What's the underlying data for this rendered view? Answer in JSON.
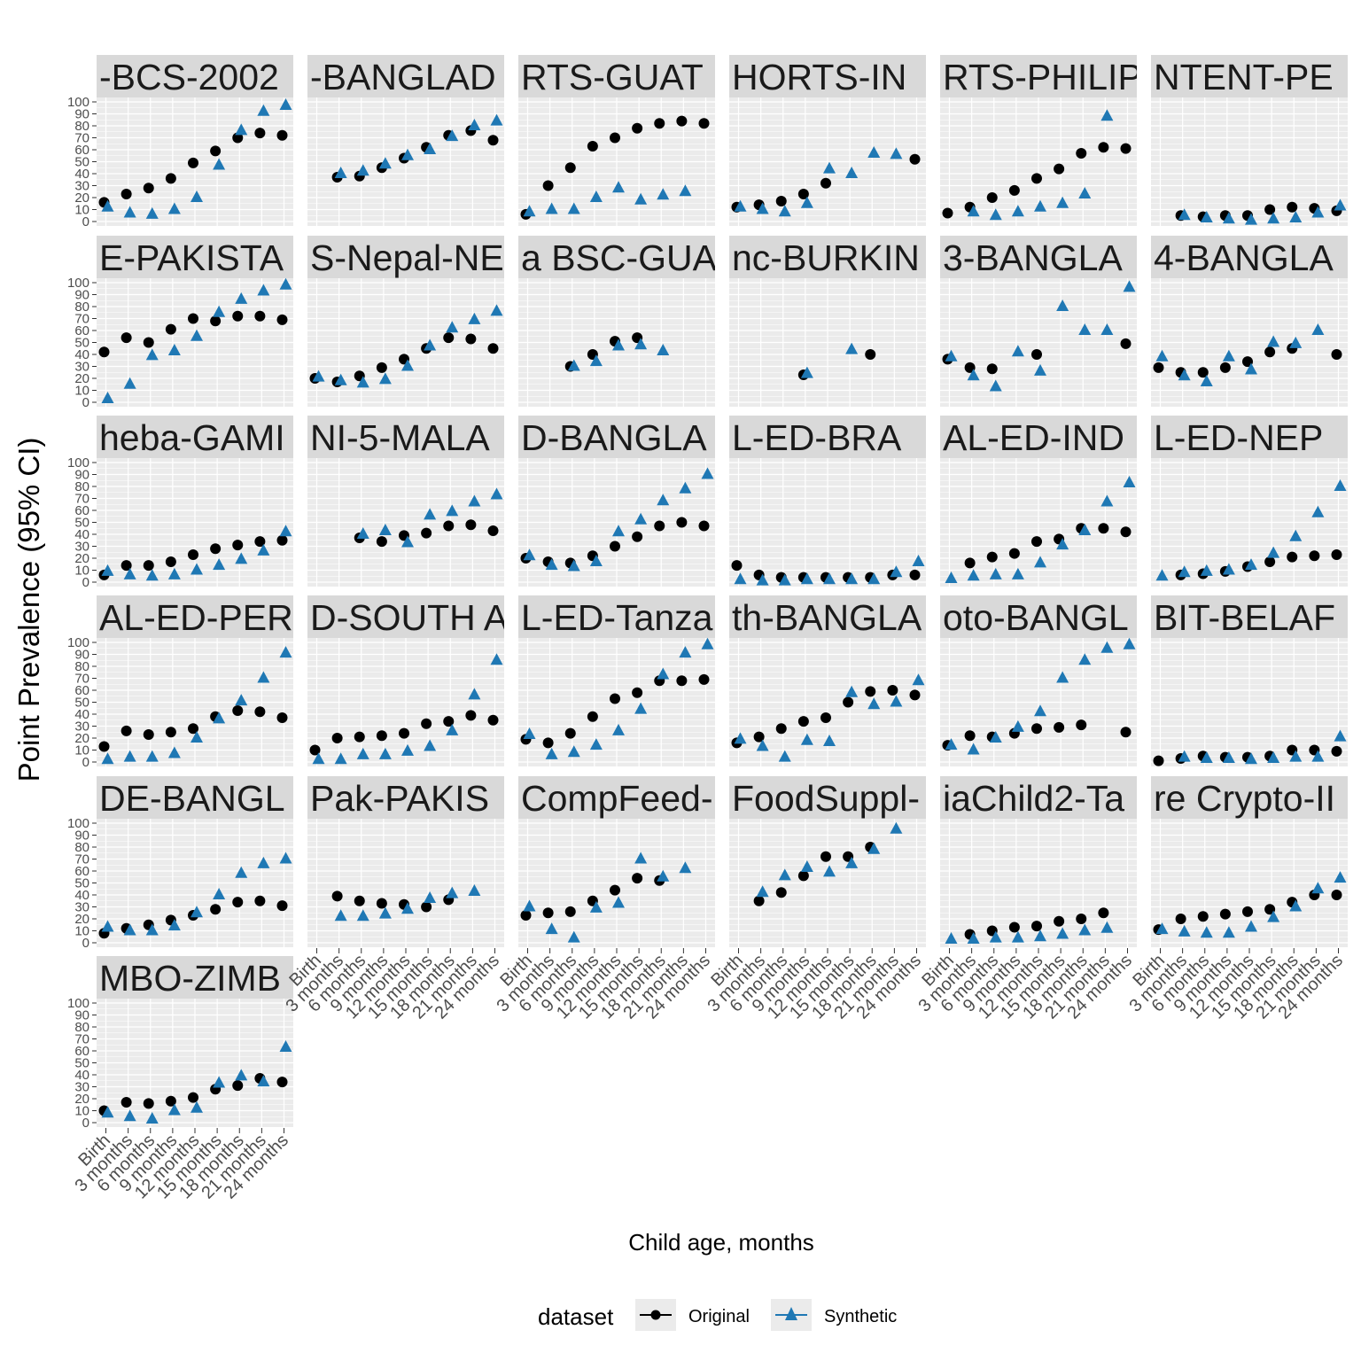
{
  "chart_data": {
    "type": "scatter",
    "layout": "faceted small multiples, 6 columns",
    "xlabel": "Child age, months",
    "ylabel": "Point Prevalence (95% CI)",
    "ylim": [
      0,
      100
    ],
    "y_ticks": [
      0,
      10,
      20,
      30,
      40,
      50,
      60,
      70,
      80,
      90,
      100
    ],
    "categories": [
      "Birth",
      "3 months",
      "6 months",
      "9 months",
      "12 months",
      "15 months",
      "18 months",
      "21 months",
      "24 months"
    ],
    "legend": {
      "title": "dataset",
      "position": "bottom",
      "entries": [
        {
          "label": "Original",
          "color": "#000000",
          "marker": "circle"
        },
        {
          "label": "Synthetic",
          "color": "#1f78b4",
          "marker": "triangle"
        }
      ]
    },
    "panels": [
      {
        "title": "-BCS-2002",
        "series": [
          {
            "name": "Original",
            "values": [
              16,
              23,
              28,
              36,
              49,
              59,
              70,
              74,
              72
            ]
          },
          {
            "name": "Synthetic",
            "values": [
              12,
              7,
              6,
              10,
              20,
              47,
              76,
              92,
              97
            ]
          }
        ]
      },
      {
        "title": "-BANGLAD",
        "series": [
          {
            "name": "Original",
            "values": [
              null,
              37,
              38,
              45,
              53,
              62,
              72,
              76,
              68
            ]
          },
          {
            "name": "Synthetic",
            "values": [
              null,
              40,
              42,
              48,
              55,
              60,
              71,
              80,
              84
            ]
          }
        ]
      },
      {
        "title": "RTS-GUAT",
        "series": [
          {
            "name": "Original",
            "values": [
              6,
              30,
              45,
              63,
              70,
              78,
              82,
              84,
              82
            ]
          },
          {
            "name": "Synthetic",
            "values": [
              8,
              10,
              10,
              20,
              28,
              18,
              22,
              25,
              null
            ]
          }
        ]
      },
      {
        "title": "HORTS-IN",
        "series": [
          {
            "name": "Original",
            "values": [
              12,
              14,
              17,
              23,
              32,
              null,
              null,
              null,
              52
            ]
          },
          {
            "name": "Synthetic",
            "values": [
              12,
              10,
              8,
              15,
              44,
              40,
              57,
              56,
              null
            ]
          }
        ]
      },
      {
        "title": "RTS-PHILIP",
        "series": [
          {
            "name": "Original",
            "values": [
              7,
              12,
              20,
              26,
              36,
              44,
              57,
              62,
              61
            ]
          },
          {
            "name": "Synthetic",
            "values": [
              null,
              8,
              5,
              8,
              12,
              15,
              23,
              88,
              null
            ]
          }
        ]
      },
      {
        "title": "NTENT-PE",
        "series": [
          {
            "name": "Original",
            "values": [
              null,
              5,
              4,
              5,
              5,
              10,
              12,
              11,
              9
            ]
          },
          {
            "name": "Synthetic",
            "values": [
              null,
              5,
              3,
              2,
              1,
              2,
              3,
              7,
              13
            ]
          }
        ]
      },
      {
        "title": "E-PAKISTA",
        "series": [
          {
            "name": "Original",
            "values": [
              42,
              54,
              50,
              61,
              70,
              68,
              72,
              72,
              69
            ]
          },
          {
            "name": "Synthetic",
            "values": [
              3,
              15,
              39,
              43,
              55,
              75,
              86,
              93,
              98
            ]
          }
        ]
      },
      {
        "title": "S-Nepal-NE",
        "series": [
          {
            "name": "Original",
            "values": [
              20,
              17,
              22,
              29,
              36,
              45,
              54,
              53,
              45
            ]
          },
          {
            "name": "Synthetic",
            "values": [
              21,
              18,
              16,
              19,
              30,
              47,
              62,
              69,
              76
            ]
          }
        ]
      },
      {
        "title": "a BSC-GUA",
        "series": [
          {
            "name": "Original",
            "values": [
              null,
              null,
              30,
              40,
              51,
              54,
              null,
              null,
              null
            ]
          },
          {
            "name": "Synthetic",
            "values": [
              null,
              null,
              30,
              34,
              47,
              48,
              43,
              null,
              null
            ]
          }
        ]
      },
      {
        "title": "nc-BURKIN",
        "series": [
          {
            "name": "Original",
            "values": [
              null,
              null,
              null,
              23,
              null,
              null,
              40,
              null,
              null
            ]
          },
          {
            "name": "Synthetic",
            "values": [
              null,
              null,
              null,
              24,
              null,
              44,
              null,
              null,
              null
            ]
          }
        ]
      },
      {
        "title": "3-BANGLA",
        "series": [
          {
            "name": "Original",
            "values": [
              36,
              29,
              28,
              null,
              40,
              null,
              null,
              null,
              49
            ]
          },
          {
            "name": "Synthetic",
            "values": [
              38,
              22,
              13,
              42,
              26,
              80,
              60,
              60,
              96
            ]
          }
        ]
      },
      {
        "title": "4-BANGLA",
        "series": [
          {
            "name": "Original",
            "values": [
              29,
              25,
              25,
              29,
              34,
              42,
              45,
              null,
              40
            ]
          },
          {
            "name": "Synthetic",
            "values": [
              38,
              22,
              17,
              38,
              27,
              50,
              49,
              60,
              null
            ]
          }
        ]
      },
      {
        "title": "heba-GAMI",
        "series": [
          {
            "name": "Original",
            "values": [
              6,
              14,
              14,
              17,
              23,
              28,
              31,
              34,
              35
            ]
          },
          {
            "name": "Synthetic",
            "values": [
              9,
              6,
              5,
              6,
              10,
              14,
              19,
              26,
              42
            ]
          }
        ]
      },
      {
        "title": "NI-5-MALA",
        "series": [
          {
            "name": "Original",
            "values": [
              null,
              null,
              37,
              34,
              39,
              41,
              47,
              48,
              43
            ]
          },
          {
            "name": "Synthetic",
            "values": [
              null,
              null,
              40,
              43,
              33,
              56,
              59,
              67,
              73
            ]
          }
        ]
      },
      {
        "title": "D-BANGLA",
        "series": [
          {
            "name": "Original",
            "values": [
              20,
              17,
              16,
              22,
              30,
              38,
              47,
              50,
              47
            ]
          },
          {
            "name": "Synthetic",
            "values": [
              22,
              14,
              13,
              17,
              42,
              52,
              68,
              78,
              90
            ]
          }
        ]
      },
      {
        "title": "L-ED-BRA",
        "series": [
          {
            "name": "Original",
            "values": [
              14,
              6,
              4,
              4,
              4,
              4,
              4,
              6,
              6
            ]
          },
          {
            "name": "Synthetic",
            "values": [
              2,
              1,
              1,
              2,
              2,
              2,
              2,
              8,
              17
            ]
          }
        ]
      },
      {
        "title": "AL-ED-IND",
        "series": [
          {
            "name": "Original",
            "values": [
              null,
              16,
              21,
              24,
              34,
              36,
              45,
              45,
              42
            ]
          },
          {
            "name": "Synthetic",
            "values": [
              3,
              5,
              6,
              6,
              16,
              31,
              43,
              67,
              83
            ]
          }
        ]
      },
      {
        "title": "L-ED-NEP",
        "series": [
          {
            "name": "Original",
            "values": [
              null,
              6,
              7,
              9,
              13,
              17,
              21,
              22,
              23
            ]
          },
          {
            "name": "Synthetic",
            "values": [
              5,
              8,
              9,
              10,
              14,
              24,
              38,
              58,
              80
            ]
          }
        ]
      },
      {
        "title": "AL-ED-PER",
        "series": [
          {
            "name": "Original",
            "values": [
              13,
              26,
              23,
              25,
              28,
              38,
              43,
              42,
              37
            ]
          },
          {
            "name": "Synthetic",
            "values": [
              2,
              4,
              4,
              7,
              20,
              36,
              51,
              70,
              91
            ]
          }
        ]
      },
      {
        "title": "D-SOUTH A",
        "series": [
          {
            "name": "Original",
            "values": [
              10,
              20,
              21,
              22,
              24,
              32,
              34,
              39,
              35
            ]
          },
          {
            "name": "Synthetic",
            "values": [
              2,
              2,
              6,
              6,
              9,
              13,
              26,
              56,
              85
            ]
          }
        ]
      },
      {
        "title": "L-ED-Tanza",
        "series": [
          {
            "name": "Original",
            "values": [
              19,
              16,
              24,
              38,
              53,
              58,
              68,
              68,
              69
            ]
          },
          {
            "name": "Synthetic",
            "values": [
              23,
              6,
              8,
              14,
              26,
              44,
              73,
              91,
              98
            ]
          }
        ]
      },
      {
        "title": "th-BANGLA",
        "series": [
          {
            "name": "Original",
            "values": [
              16,
              21,
              28,
              34,
              37,
              50,
              59,
              60,
              56
            ]
          },
          {
            "name": "Synthetic",
            "values": [
              19,
              13,
              4,
              18,
              17,
              58,
              48,
              50,
              68
            ]
          }
        ]
      },
      {
        "title": "oto-BANGL",
        "series": [
          {
            "name": "Original",
            "values": [
              14,
              22,
              21,
              24,
              28,
              29,
              31,
              null,
              25
            ]
          },
          {
            "name": "Synthetic",
            "values": [
              14,
              10,
              20,
              29,
              42,
              70,
              85,
              95,
              98
            ]
          }
        ]
      },
      {
        "title": "BIT-BELAF",
        "series": [
          {
            "name": "Original",
            "values": [
              1,
              3,
              5,
              4,
              4,
              5,
              10,
              10,
              9
            ]
          },
          {
            "name": "Synthetic",
            "values": [
              null,
              4,
              3,
              3,
              2,
              3,
              4,
              4,
              21
            ]
          }
        ]
      },
      {
        "title": "DE-BANGL",
        "series": [
          {
            "name": "Original",
            "values": [
              8,
              12,
              15,
              19,
              23,
              28,
              34,
              35,
              31
            ]
          },
          {
            "name": "Synthetic",
            "values": [
              13,
              10,
              10,
              14,
              25,
              40,
              58,
              66,
              70
            ]
          }
        ]
      },
      {
        "title": "Pak-PAKIS",
        "series": [
          {
            "name": "Original",
            "values": [
              null,
              39,
              35,
              33,
              32,
              30,
              36,
              null,
              null
            ]
          },
          {
            "name": "Synthetic",
            "values": [
              null,
              22,
              22,
              24,
              28,
              37,
              41,
              43,
              null
            ]
          }
        ]
      },
      {
        "title": "CompFeed-",
        "series": [
          {
            "name": "Original",
            "values": [
              23,
              25,
              26,
              35,
              44,
              54,
              52,
              null,
              null
            ]
          },
          {
            "name": "Synthetic",
            "values": [
              30,
              11,
              4,
              29,
              33,
              70,
              55,
              62,
              null
            ]
          }
        ]
      },
      {
        "title": "FoodSuppl-",
        "series": [
          {
            "name": "Original",
            "values": [
              null,
              35,
              42,
              56,
              72,
              72,
              80,
              null,
              null
            ]
          },
          {
            "name": "Synthetic",
            "values": [
              null,
              42,
              56,
              63,
              59,
              66,
              78,
              95,
              null
            ]
          }
        ]
      },
      {
        "title": "iaChild2-Ta",
        "series": [
          {
            "name": "Original",
            "values": [
              null,
              7,
              10,
              13,
              14,
              18,
              20,
              25,
              null
            ]
          },
          {
            "name": "Synthetic",
            "values": [
              3,
              3,
              4,
              4,
              5,
              7,
              10,
              12,
              null
            ]
          }
        ]
      },
      {
        "title": "re Crypto-II",
        "series": [
          {
            "name": "Original",
            "values": [
              11,
              20,
              22,
              24,
              26,
              28,
              34,
              40,
              40
            ]
          },
          {
            "name": "Synthetic",
            "values": [
              11,
              9,
              8,
              8,
              13,
              21,
              30,
              45,
              54
            ]
          }
        ]
      },
      {
        "title": "MBO-ZIMB",
        "series": [
          {
            "name": "Original",
            "values": [
              10,
              17,
              16,
              18,
              21,
              28,
              31,
              37,
              34
            ]
          },
          {
            "name": "Synthetic",
            "values": [
              8,
              5,
              3,
              10,
              12,
              33,
              39,
              34,
              63
            ]
          }
        ]
      }
    ]
  }
}
